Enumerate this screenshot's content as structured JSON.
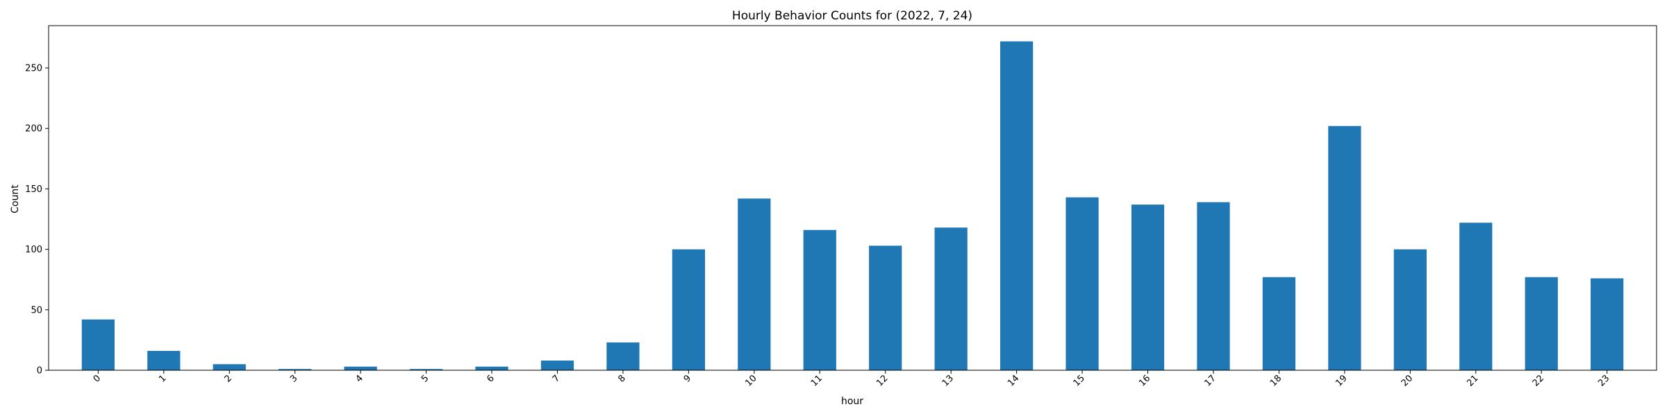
{
  "chart_data": {
    "type": "bar",
    "title": "Hourly Behavior Counts for (2022, 7, 24)",
    "xlabel": "hour",
    "ylabel": "Count",
    "categories": [
      "0",
      "1",
      "2",
      "3",
      "4",
      "5",
      "6",
      "7",
      "8",
      "9",
      "10",
      "11",
      "12",
      "13",
      "14",
      "15",
      "16",
      "17",
      "18",
      "19",
      "20",
      "21",
      "22",
      "23"
    ],
    "values": [
      42,
      16,
      5,
      1,
      3,
      1,
      3,
      8,
      23,
      100,
      142,
      116,
      103,
      118,
      272,
      143,
      137,
      139,
      77,
      202,
      100,
      122,
      77,
      76
    ],
    "ylim": [
      0,
      285
    ],
    "yticks": [
      0,
      50,
      100,
      150,
      200,
      250
    ],
    "grid": false,
    "legend": "none",
    "bar_color": "#1f77b4",
    "x_tick_rotation": 45
  }
}
